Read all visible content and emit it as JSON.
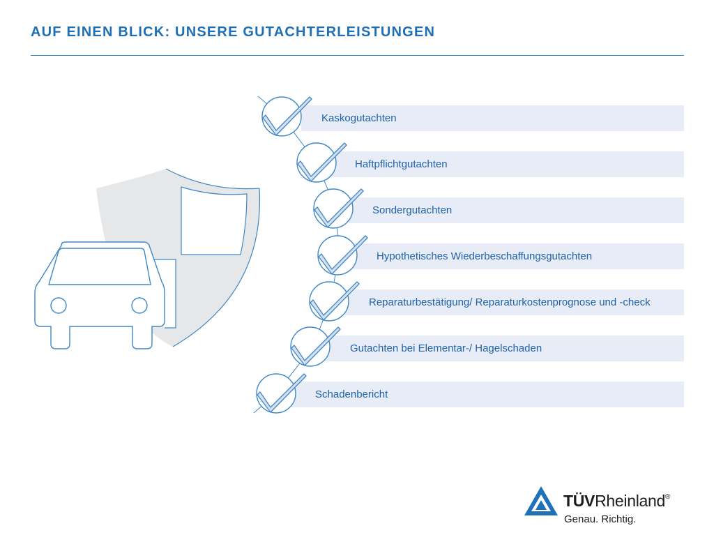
{
  "header": {
    "title": "Auf einen Blick: Unsere Gutachterleistungen"
  },
  "illustration": {
    "icons": [
      "car-icon",
      "shield-icon"
    ],
    "colors": {
      "outline": "#3e87c5",
      "shield_fill": "#e6e7e8",
      "bar_fill": "#e7ecf7",
      "text": "#2063a8"
    }
  },
  "services": [
    {
      "label": "Kaskogutachten"
    },
    {
      "label": "Haftpflichtgutachten"
    },
    {
      "label": "Sondergutachten"
    },
    {
      "label": "Hypothetisches Wiederbeschaffungsgutachten"
    },
    {
      "label": "Reparaturbestätigung/ Reparaturkostenprognose und -check"
    },
    {
      "label": "Gutachten bei Elementar-/ Hagelschaden"
    },
    {
      "label": "Schadenbericht"
    }
  ],
  "logo": {
    "brand_bold": "TÜV",
    "brand_rest": "Rheinland",
    "registered": "®",
    "slogan": "Genau. Richtig.",
    "color": "#1f72b8"
  }
}
